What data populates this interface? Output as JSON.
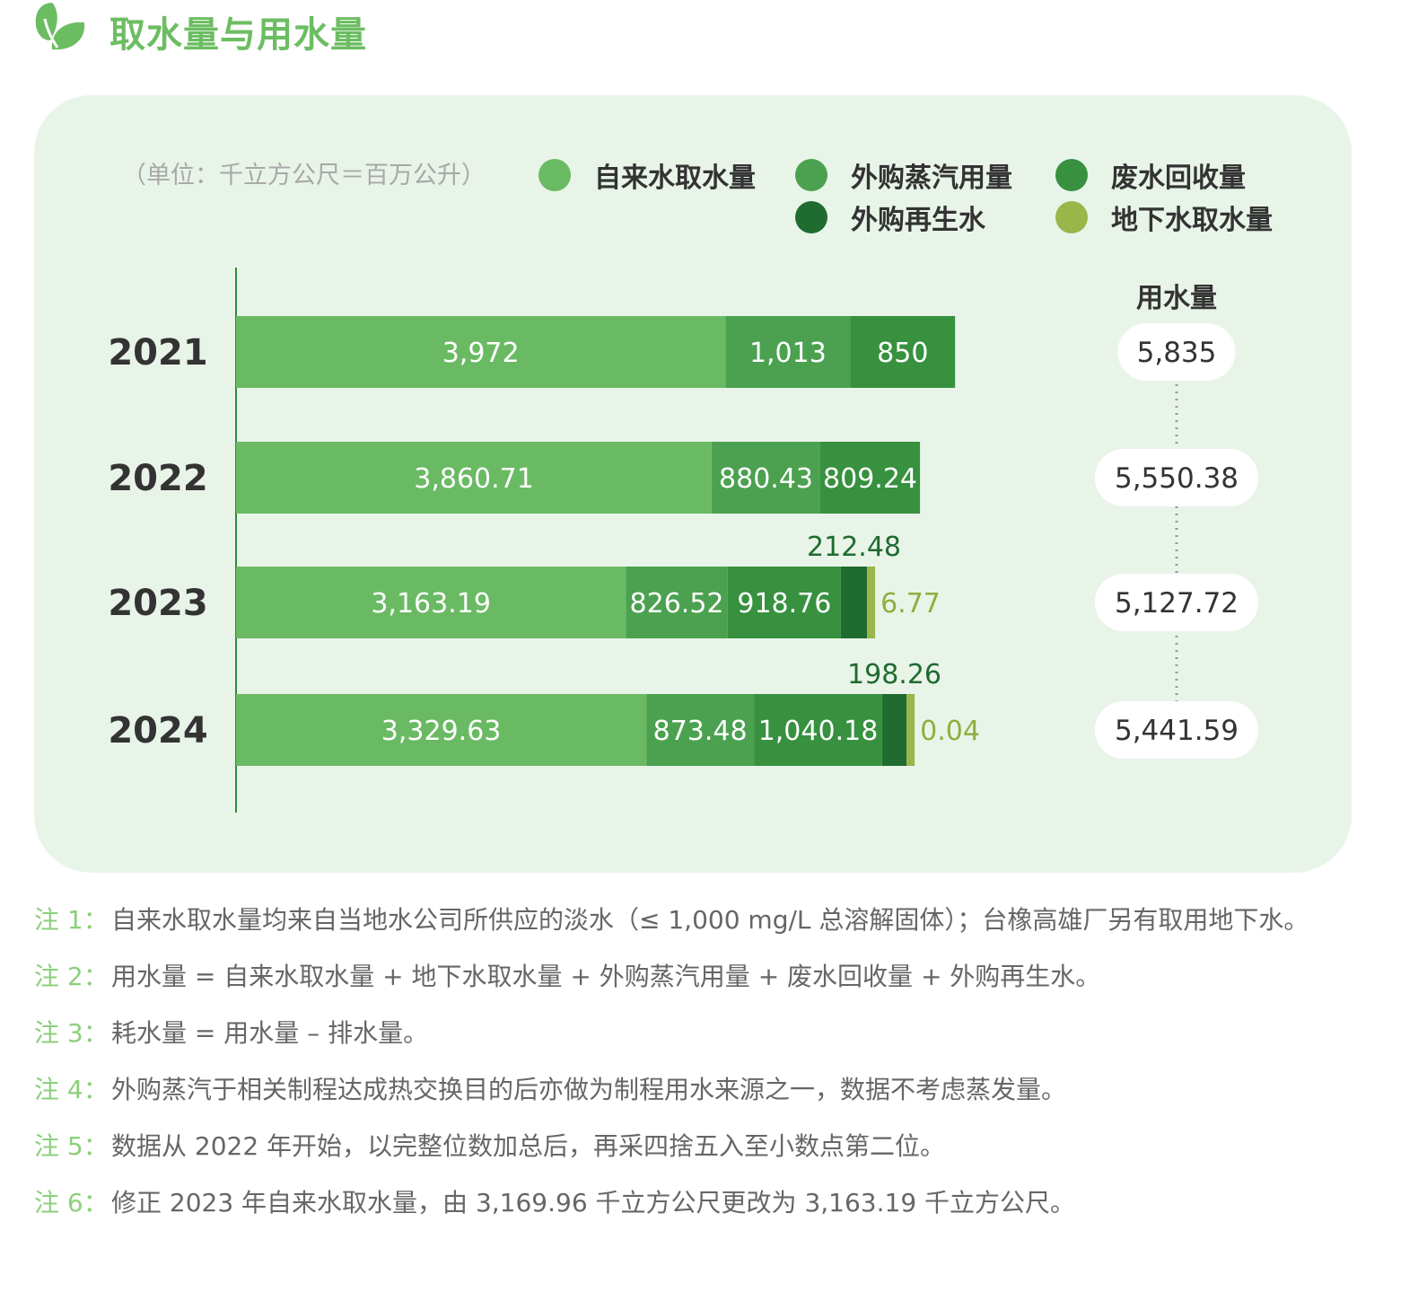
{
  "header": {
    "title": "取水量与用水量",
    "icon": "leaf-icon"
  },
  "unit_text": "（单位：千立方公尺＝百万公升）",
  "legend": [
    {
      "label": "自来水取水量",
      "color": "#6aba64"
    },
    {
      "label": "外购蒸汽用量",
      "color": "#4ba14f"
    },
    {
      "label": "废水回收量",
      "color": "#37913f"
    },
    {
      "label": "外购再生水",
      "color": "#1f6b30"
    },
    {
      "label": "地下水取水量",
      "color": "#9ab54a"
    }
  ],
  "chart_data": {
    "type": "bar",
    "orientation": "horizontal",
    "stacked": true,
    "categories": [
      "2021",
      "2022",
      "2023",
      "2024"
    ],
    "series": [
      {
        "name": "自来水取水量",
        "color": "#6aba64",
        "values": [
          3972,
          3860.71,
          3163.19,
          3329.63
        ],
        "labels": [
          "3,972",
          "3,860.71",
          "3,163.19",
          "3,329.63"
        ]
      },
      {
        "name": "外购蒸汽用量",
        "color": "#4ba14f",
        "values": [
          1013,
          880.43,
          826.52,
          873.48
        ],
        "labels": [
          "1,013",
          "880.43",
          "826.52",
          "873.48"
        ]
      },
      {
        "name": "废水回收量",
        "color": "#37913f",
        "values": [
          850,
          809.24,
          918.76,
          1040.18
        ],
        "labels": [
          "850",
          "809.24",
          "918.76",
          "1,040.18"
        ]
      },
      {
        "name": "外购再生水",
        "color": "#1f6b30",
        "values": [
          null,
          null,
          212.48,
          198.26
        ],
        "labels": [
          "",
          "",
          "212.48",
          "198.26"
        ]
      },
      {
        "name": "地下水取水量",
        "color": "#9ab54a",
        "values": [
          null,
          null,
          6.77,
          0.04
        ],
        "labels": [
          "",
          "",
          "6.77",
          "0.04"
        ]
      }
    ],
    "totals_header": "用水量",
    "totals": [
      "5,835",
      "5,550.38",
      "5,127.72",
      "5,441.59"
    ],
    "total_values": [
      5835,
      5550.38,
      5127.72,
      5441.59
    ],
    "xlim": [
      0,
      6000
    ],
    "grid": false
  },
  "notes": [
    {
      "label": "注 1：",
      "text": "自来水取水量均来自当地水公司所供应的淡水（≤ 1,000 mg/L 总溶解固体）；台橡高雄厂另有取用地下水。"
    },
    {
      "label": "注 2：",
      "text": "用水量 = 自来水取水量 + 地下水取水量 + 外购蒸汽用量 + 废水回收量 + 外购再生水。"
    },
    {
      "label": "注 3：",
      "text": "耗水量 = 用水量 – 排水量。"
    },
    {
      "label": "注 4：",
      "text": "外购蒸汽于相关制程达成热交换目的后亦做为制程用水来源之一，数据不考虑蒸发量。"
    },
    {
      "label": "注 5：",
      "text": "数据从 2022 年开始，以完整位数加总后，再采四捨五入至小数点第二位。"
    },
    {
      "label": "注 6：",
      "text": "修正 2023 年自来水取水量，由 3,169.96 千立方公尺更改为 3,163.19 千立方公尺。"
    }
  ]
}
